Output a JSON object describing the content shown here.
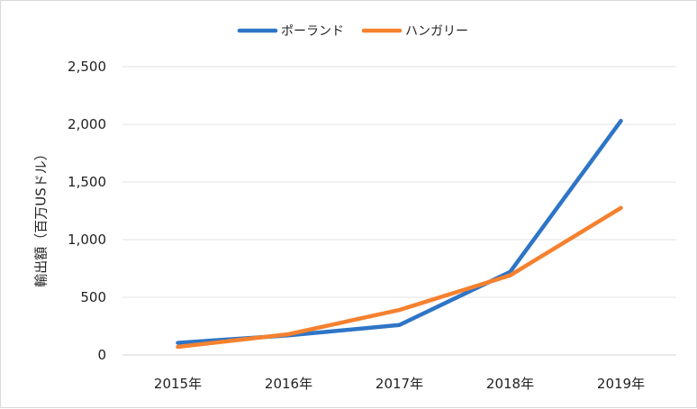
{
  "chart_data": {
    "type": "line",
    "title": "",
    "xlabel": "",
    "ylabel": "輸出額（百万USドル）",
    "categories": [
      "2015年",
      "2016年",
      "2017年",
      "2018年",
      "2019年"
    ],
    "yticks": [
      "0",
      "500",
      "1,000",
      "1,500",
      "2,000",
      "2,500"
    ],
    "ylim": [
      0,
      2500
    ],
    "grid": true,
    "legend_position": "top-center",
    "series": [
      {
        "name": "ポーランド",
        "color": "#2E75C6",
        "values": [
          105,
          170,
          260,
          720,
          2030
        ]
      },
      {
        "name": "ハンガリー",
        "color": "#F5812F",
        "values": [
          70,
          180,
          390,
          690,
          1275
        ]
      }
    ]
  }
}
